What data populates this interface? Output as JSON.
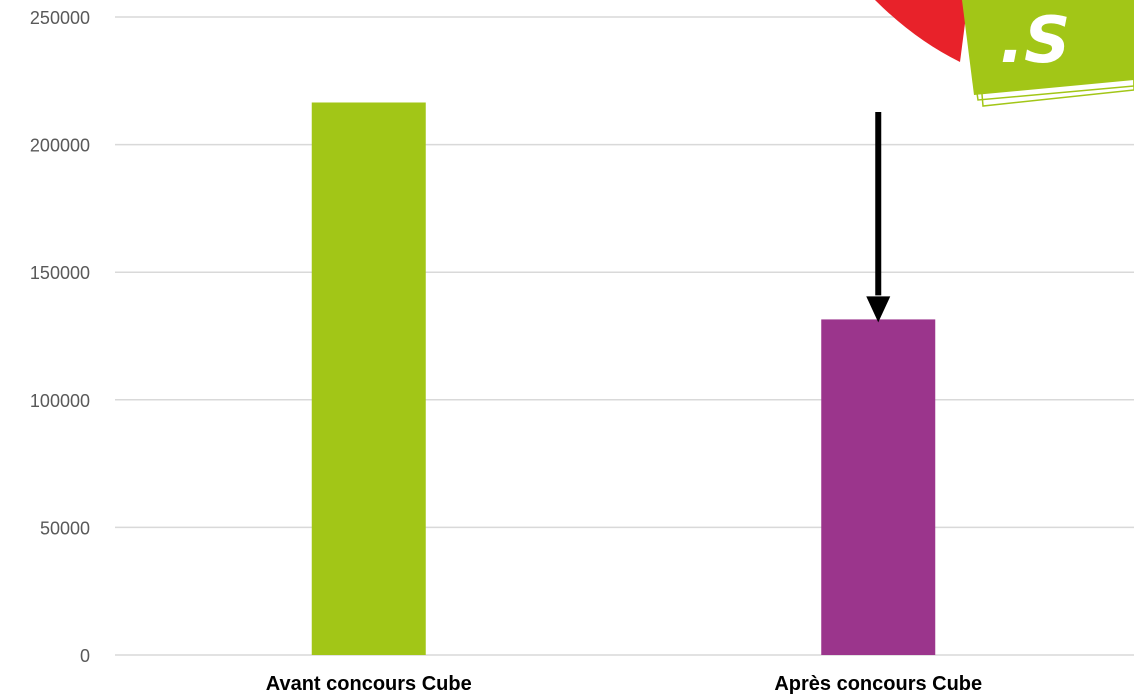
{
  "chart_data": {
    "type": "bar",
    "title": "",
    "xlabel": "",
    "ylabel": "",
    "categories": [
      "Avant concours Cube",
      "Après concours Cube"
    ],
    "values": [
      216500,
      131500
    ],
    "bar_colors": [
      "#a2c617",
      "#9b358c"
    ],
    "ylim": [
      0,
      250000
    ],
    "yticks": [
      0,
      50000,
      100000,
      150000,
      200000,
      250000
    ],
    "ytick_labels": [
      "0",
      "50000",
      "100000",
      "150000",
      "200000",
      "250000"
    ],
    "grid": true,
    "legend": "none",
    "annotations": [
      {
        "type": "arrow",
        "direction": "down",
        "target_category": "Après concours Cube",
        "color": "#000000"
      }
    ]
  },
  "logo": {
    "icon": "speech-bubble-logo-icon",
    "text": ".S",
    "colors": {
      "primary": "#a2c617",
      "secondary": "#e8222a",
      "text": "#ffffff"
    }
  }
}
